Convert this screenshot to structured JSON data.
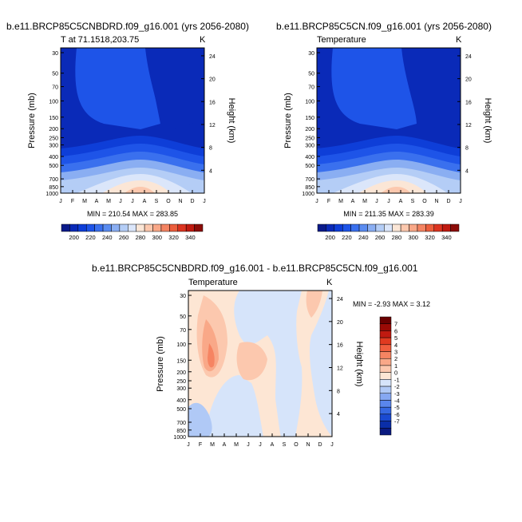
{
  "chart_data": [
    {
      "type": "heatmap",
      "title": "b.e11.BRCP85C5CNBDRD.f09_g16.001 (yrs 2056-2080)",
      "subtitle_left": "T at 71.1518,203.75",
      "subtitle_right": "K",
      "ylabel": "Pressure (mb)",
      "ylabel_right": "Height (km)",
      "x_ticks": [
        "J",
        "F",
        "M",
        "A",
        "M",
        "J",
        "J",
        "A",
        "S",
        "O",
        "N",
        "D",
        "J"
      ],
      "y_ticks": [
        "30",
        "50",
        "70",
        "100",
        "150",
        "200",
        "250",
        "300",
        "400",
        "500",
        "700",
        "850",
        "1000"
      ],
      "y2_ticks": [
        "24",
        "20",
        "16",
        "12",
        "8",
        "4"
      ],
      "stats": "MIN = 210.54  MAX = 283.85",
      "colorbar": [
        "200",
        "220",
        "240",
        "260",
        "280",
        "300",
        "320",
        "340"
      ]
    },
    {
      "type": "heatmap",
      "title": "b.e11.BRCP85C5CN.f09_g16.001 (yrs 2056-2080)",
      "subtitle_left": "Temperature",
      "subtitle_right": "K",
      "ylabel": "Pressure (mb)",
      "ylabel_right": "Height (km)",
      "x_ticks": [
        "J",
        "F",
        "M",
        "A",
        "M",
        "J",
        "J",
        "A",
        "S",
        "O",
        "N",
        "D",
        "J"
      ],
      "y_ticks": [
        "30",
        "50",
        "70",
        "100",
        "150",
        "200",
        "250",
        "300",
        "400",
        "500",
        "700",
        "850",
        "1000"
      ],
      "y2_ticks": [
        "24",
        "20",
        "16",
        "12",
        "8",
        "4"
      ],
      "stats": "MIN = 211.35  MAX = 283.39",
      "colorbar": [
        "200",
        "220",
        "240",
        "260",
        "280",
        "300",
        "320",
        "340"
      ]
    },
    {
      "type": "heatmap",
      "title": "b.e11.BRCP85C5CNBDRD.f09_g16.001 - b.e11.BRCP85C5CN.f09_g16.001",
      "subtitle_left": "Temperature",
      "subtitle_right": "K",
      "ylabel": "Pressure (mb)",
      "ylabel_right": "Height (km)",
      "x_ticks": [
        "J",
        "F",
        "M",
        "A",
        "M",
        "J",
        "J",
        "A",
        "S",
        "O",
        "N",
        "D",
        "J"
      ],
      "y_ticks": [
        "30",
        "50",
        "70",
        "100",
        "150",
        "200",
        "250",
        "300",
        "400",
        "500",
        "700",
        "850",
        "1000"
      ],
      "y2_ticks": [
        "24",
        "20",
        "16",
        "12",
        "8",
        "4"
      ],
      "stats": "MIN =  -2.93 MAX =   3.12",
      "colorbar": [
        "7",
        "6",
        "5",
        "4",
        "3",
        "2",
        "1",
        "0",
        "-1",
        "-2",
        "-3",
        "-4",
        "-5",
        "-6",
        "-7"
      ]
    }
  ],
  "colors": {
    "abs_scale": [
      "#0a1a8a",
      "#0a2ab8",
      "#0e3ed8",
      "#1e54e8",
      "#3a70ee",
      "#5a8cf0",
      "#8aaef2",
      "#b4cdf6",
      "#dbe6fa",
      "#fbe6d6",
      "#fcc8ae",
      "#f9a888",
      "#f48462",
      "#ec5e3c",
      "#dc3420",
      "#c01a10",
      "#8c0c08"
    ],
    "diff_scale": [
      "#6a0000",
      "#9a0a05",
      "#c01a10",
      "#e03a20",
      "#f05e3e",
      "#f68462",
      "#f9a888",
      "#fcc8ae",
      "#fde6d4",
      "#d6e4fa",
      "#b0c9f6",
      "#86a8f2",
      "#5a86ec",
      "#3668e2",
      "#1a4ad2",
      "#0a2ea8",
      "#0a1a80"
    ]
  }
}
